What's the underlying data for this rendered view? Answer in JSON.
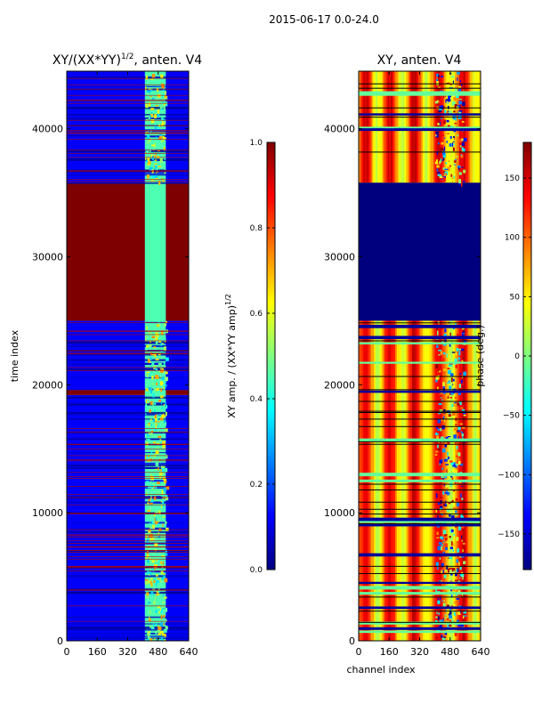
{
  "figure_title": "2015-06-17 0.0-24.0",
  "colors": {
    "jet": [
      "#00007f",
      "#0000ff",
      "#007fff",
      "#00ffff",
      "#7fff7f",
      "#ffff00",
      "#ff7f00",
      "#ff0000",
      "#7f0000"
    ]
  },
  "chart_data": [
    {
      "type": "heatmap",
      "title_main": "XY/(XX*YY)",
      "title_exp": "1/2",
      "title_tail": ", anten. V4",
      "xlabel": "",
      "ylabel": "time index",
      "xlim": [
        0,
        640
      ],
      "ylim": [
        0,
        44500
      ],
      "xticks": [
        0,
        160,
        320,
        480,
        640
      ],
      "xtick_labels": [
        "0",
        "160",
        "320",
        "480",
        "640"
      ],
      "yticks": [
        0,
        10000,
        20000,
        30000,
        40000
      ],
      "ytick_labels": [
        "0",
        "10000",
        "20000",
        "30000",
        "40000"
      ],
      "colorbar": {
        "label_main": "XY amp. / (XX*YY amp)",
        "label_exp": "1/2",
        "range": [
          0.0,
          1.0
        ],
        "ticks": [
          0.0,
          0.2,
          0.4,
          0.6,
          0.8,
          1.0
        ],
        "tick_labels": [
          "0.0",
          "0.2",
          "0.4",
          "0.6",
          "0.8",
          "1.0"
        ]
      },
      "regions": [
        {
          "y0": 0,
          "y1": 19200,
          "x0": 0,
          "x1": 640,
          "value": 0.12,
          "note": "low amplitude"
        },
        {
          "y0": 19200,
          "y1": 19600,
          "x0": 0,
          "x1": 640,
          "value": 1.0,
          "note": "flagged band"
        },
        {
          "y0": 19600,
          "y1": 25000,
          "x0": 0,
          "x1": 640,
          "value": 0.12,
          "note": "low amplitude"
        },
        {
          "y0": 25000,
          "y1": 35800,
          "x0": 0,
          "x1": 640,
          "value": 1.0,
          "note": "flagged block"
        },
        {
          "y0": 35800,
          "y1": 44500,
          "x0": 0,
          "x1": 640,
          "value": 0.12,
          "note": "low amplitude"
        },
        {
          "y0": 0,
          "y1": 44500,
          "x0": 410,
          "x1": 520,
          "value": 0.45,
          "note": "elevated amplitude channels"
        }
      ]
    },
    {
      "type": "heatmap",
      "title_main": "XY, anten. V4",
      "xlabel": "channel index",
      "ylabel": "",
      "xlim": [
        0,
        640
      ],
      "ylim": [
        0,
        44500
      ],
      "xticks": [
        0,
        160,
        320,
        480,
        640
      ],
      "xtick_labels": [
        "0",
        "160",
        "320",
        "480",
        "640"
      ],
      "yticks": [
        0,
        10000,
        20000,
        30000,
        40000
      ],
      "ytick_labels": [
        "0",
        "10000",
        "20000",
        "30000",
        "40000"
      ],
      "colorbar": {
        "label_main": "phase (deg.)",
        "range": [
          -180,
          180
        ],
        "ticks": [
          -150,
          -100,
          -50,
          0,
          50,
          100,
          150
        ],
        "tick_labels": [
          "−150",
          "−100",
          "−50",
          "0",
          "50",
          "100",
          "150"
        ]
      },
      "regions": [
        {
          "y0": 0,
          "y1": 25000,
          "x0": 0,
          "x1": 640,
          "value": 80,
          "note": "phase stripes yellow/orange/red"
        },
        {
          "y0": 25000,
          "y1": 35800,
          "x0": 0,
          "x1": 640,
          "value": -180,
          "note": "flagged block"
        },
        {
          "y0": 35800,
          "y1": 44500,
          "x0": 0,
          "x1": 640,
          "value": 90,
          "note": "phase stripes"
        }
      ]
    }
  ]
}
